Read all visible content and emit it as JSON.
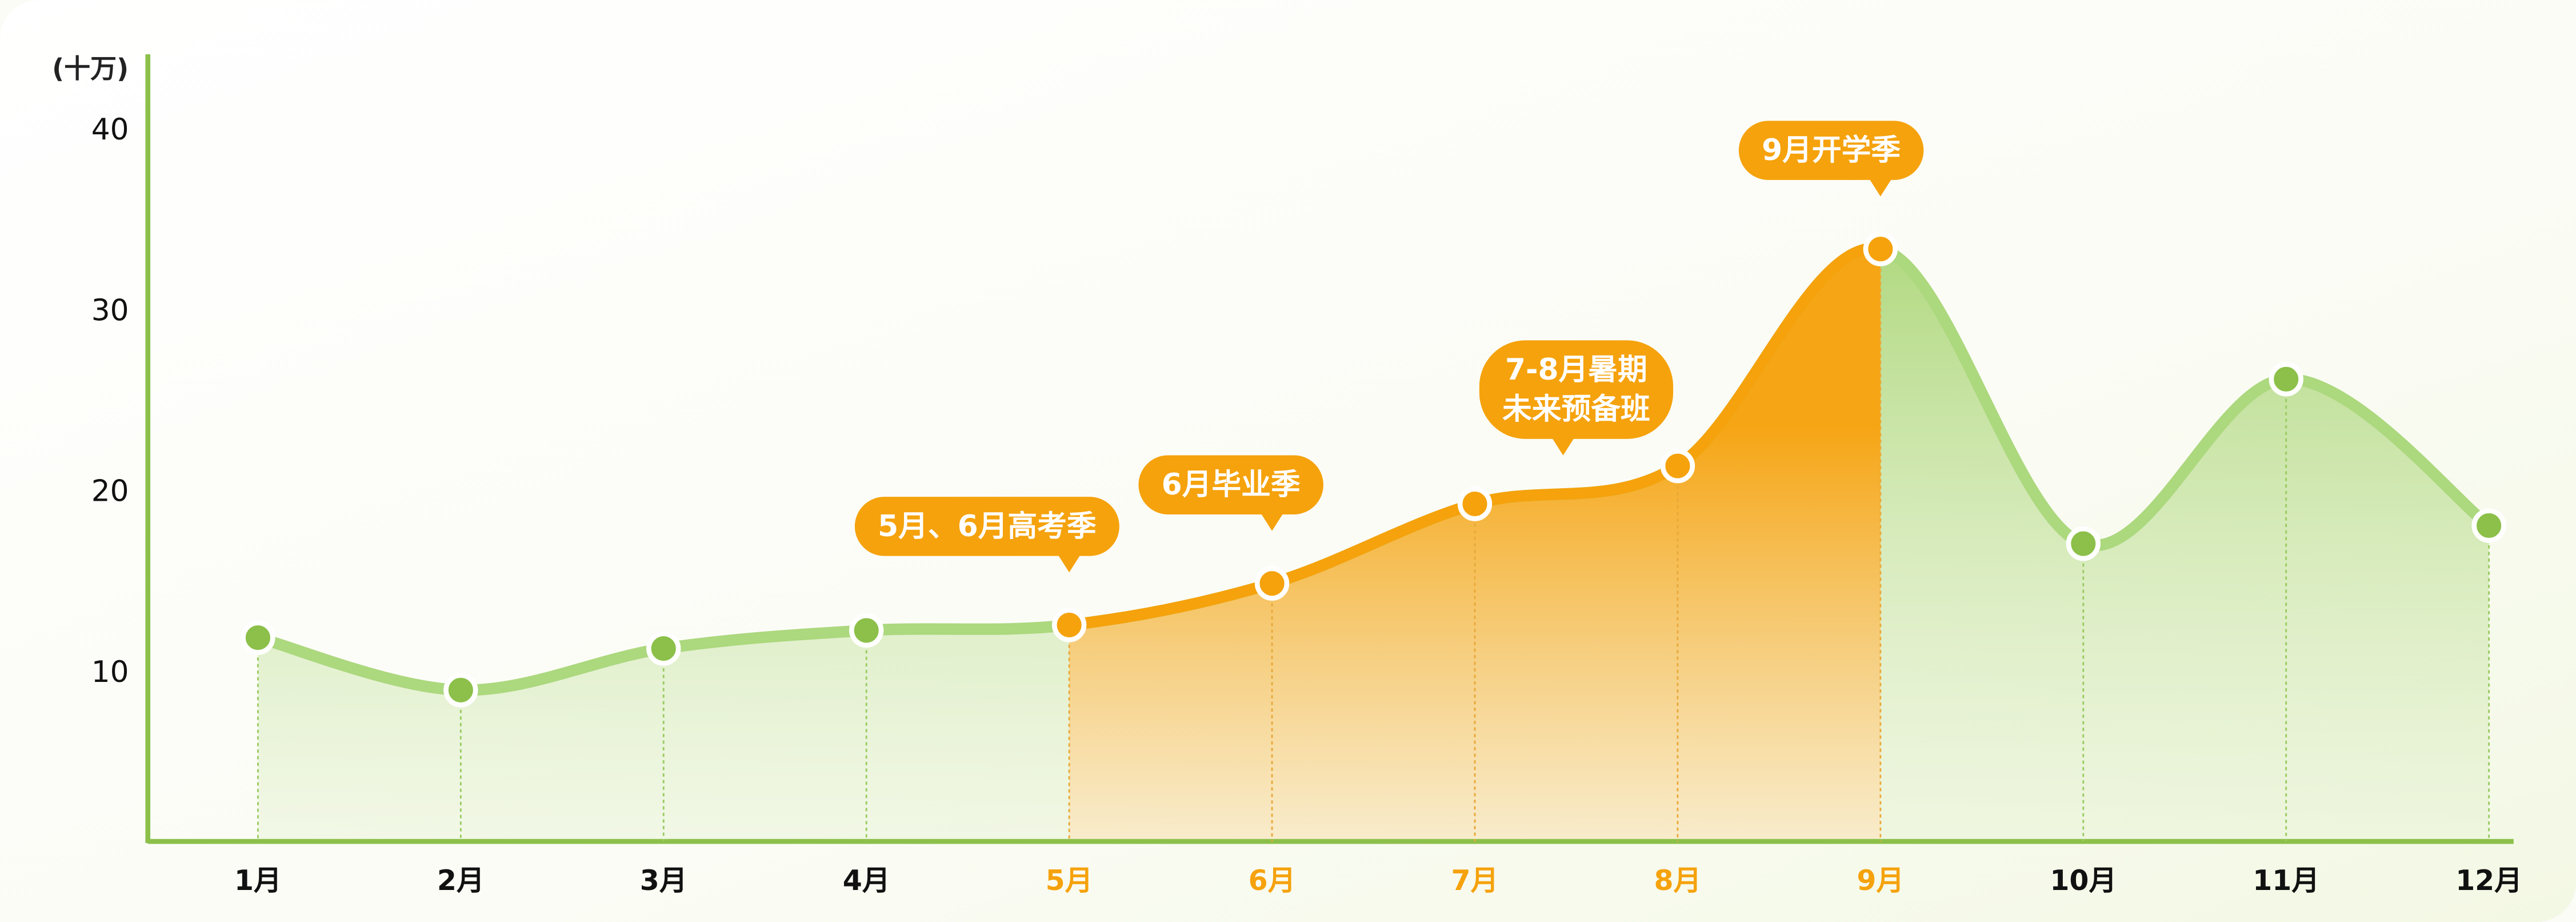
{
  "chart_data": {
    "type": "area",
    "y_unit": "(十万)",
    "categories": [
      "1月",
      "2月",
      "3月",
      "4月",
      "5月",
      "6月",
      "7月",
      "8月",
      "9月",
      "10月",
      "11月",
      "12月"
    ],
    "values": [
      12.0,
      9.1,
      11.4,
      12.4,
      12.7,
      15.0,
      19.4,
      21.5,
      33.5,
      17.2,
      26.3,
      18.2
    ],
    "color": "#8cc04a",
    "line_color": "#acd87e",
    "highlight": {
      "from": "5月",
      "to": "9月",
      "color": "#f5a20c"
    },
    "ylim": [
      0,
      40
    ],
    "yticks": [
      10,
      20,
      30,
      40
    ],
    "annotations": [
      {
        "lines": [
          "5月、6月高考季"
        ],
        "at": [
          "5月"
        ]
      },
      {
        "lines": [
          "6月毕业季"
        ],
        "at": [
          "6月"
        ]
      },
      {
        "lines": [
          "7-8月暑期",
          "未来预备班"
        ],
        "at": [
          "7月",
          "8月"
        ]
      },
      {
        "lines": [
          "9月开学季"
        ],
        "at": [
          "9月"
        ]
      }
    ]
  }
}
